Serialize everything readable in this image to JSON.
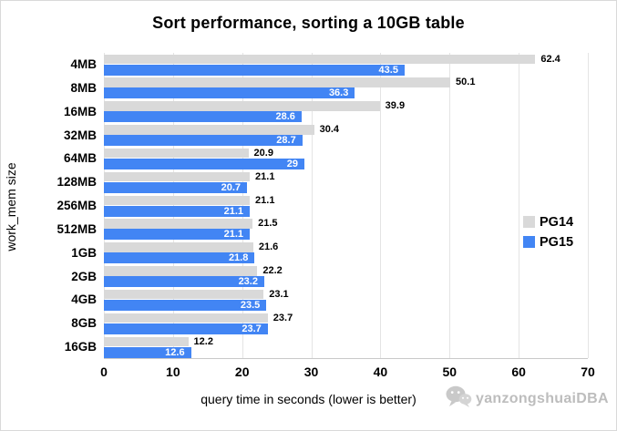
{
  "chart_data": {
    "type": "bar",
    "orientation": "horizontal",
    "title": "Sort performance, sorting a 10GB table",
    "xlabel": "query time in seconds (lower is better)",
    "ylabel": "work_mem size",
    "xlim": [
      0,
      70
    ],
    "xticks": [
      0,
      10,
      20,
      30,
      40,
      50,
      60,
      70
    ],
    "grid": "vertical",
    "legend_position": "right-inside",
    "categories": [
      "4MB",
      "8MB",
      "16MB",
      "32MB",
      "64MB",
      "128MB",
      "256MB",
      "512MB",
      "1GB",
      "2GB",
      "4GB",
      "8GB",
      "16GB"
    ],
    "series": [
      {
        "name": "PG14",
        "color": "#d9d9d9",
        "label_color": "#000000",
        "label_position": "outside-end",
        "values": [
          62.4,
          50.1,
          39.9,
          30.4,
          20.9,
          21.1,
          21.1,
          21.5,
          21.6,
          22.2,
          23.1,
          23.7,
          12.2
        ]
      },
      {
        "name": "PG15",
        "color": "#4285f4",
        "label_color": "#ffffff",
        "label_position": "inside-end",
        "values": [
          43.5,
          36.3,
          28.6,
          28.7,
          29,
          20.7,
          21.1,
          21.1,
          21.8,
          23.2,
          23.5,
          23.7,
          12.6
        ]
      }
    ]
  },
  "watermark": {
    "text": "yanzongshuaiDBA",
    "icon": "wechat-icon"
  }
}
